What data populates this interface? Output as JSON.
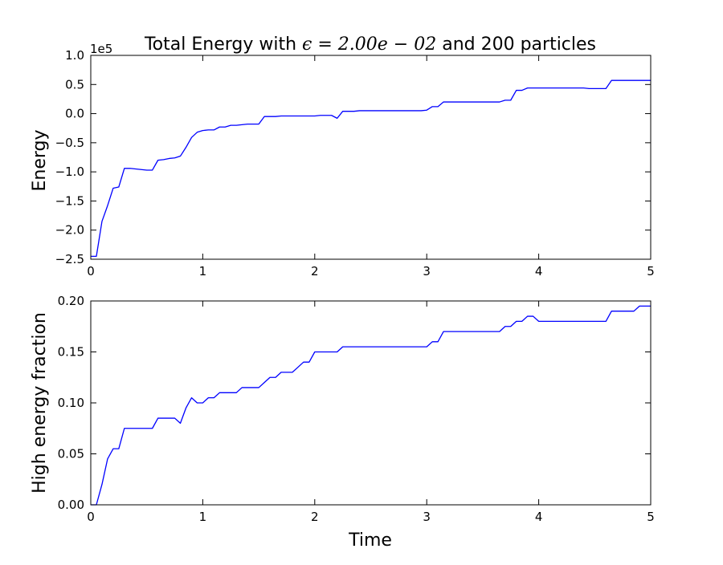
{
  "chart_data": [
    {
      "type": "line",
      "title_prefix": "Total Energy with ",
      "title_math": "ϵ = 2.00e − 02",
      "title_suffix": " and 200 particles",
      "xlabel": "",
      "ylabel": "Energy",
      "offset_text": "1e5",
      "xlim": [
        0,
        5
      ],
      "ylim": [
        -2.5,
        1.0
      ],
      "xticks": [
        0,
        1,
        2,
        3,
        4,
        5
      ],
      "xtick_labels": [
        "0",
        "1",
        "2",
        "3",
        "4",
        "5"
      ],
      "yticks": [
        -2.5,
        -2.0,
        -1.5,
        -1.0,
        -0.5,
        0.0,
        0.5,
        1.0
      ],
      "ytick_labels": [
        "−2.5",
        "−2.0",
        "−1.5",
        "−1.0",
        "−0.5",
        "0.0",
        "0.5",
        "1.0"
      ],
      "grid": false,
      "line_color": "#0000ff",
      "series": [
        {
          "x": [
            0,
            0.05,
            0.1,
            0.15,
            0.2,
            0.25,
            0.3,
            0.35,
            0.4,
            0.45,
            0.5,
            0.55,
            0.6,
            0.65,
            0.7,
            0.75,
            0.8,
            0.85,
            0.9,
            0.95,
            1.0,
            1.05,
            1.1,
            1.15,
            1.2,
            1.25,
            1.3,
            1.35,
            1.4,
            1.45,
            1.5,
            1.55,
            1.6,
            1.65,
            1.7,
            1.75,
            1.8,
            1.85,
            1.9,
            1.95,
            2.0,
            2.05,
            2.1,
            2.15,
            2.2,
            2.25,
            2.3,
            2.35,
            2.4,
            2.45,
            2.5,
            2.55,
            2.6,
            2.65,
            2.7,
            2.75,
            2.8,
            2.85,
            2.9,
            2.95,
            3.0,
            3.05,
            3.1,
            3.15,
            3.2,
            3.25,
            3.3,
            3.35,
            3.4,
            3.45,
            3.5,
            3.55,
            3.6,
            3.65,
            3.7,
            3.75,
            3.8,
            3.85,
            3.9,
            3.95,
            4.0,
            4.05,
            4.1,
            4.15,
            4.2,
            4.25,
            4.3,
            4.35,
            4.4,
            4.45,
            4.5,
            4.55,
            4.6,
            4.65,
            4.7,
            4.75,
            4.8,
            4.85,
            4.9,
            4.95,
            5.0
          ],
          "values": [
            -2.45,
            -2.45,
            -1.85,
            -1.58,
            -1.28,
            -1.26,
            -0.94,
            -0.94,
            -0.95,
            -0.96,
            -0.97,
            -0.97,
            -0.8,
            -0.79,
            -0.77,
            -0.76,
            -0.73,
            -0.58,
            -0.41,
            -0.32,
            -0.29,
            -0.28,
            -0.28,
            -0.23,
            -0.23,
            -0.2,
            -0.2,
            -0.19,
            -0.18,
            -0.18,
            -0.18,
            -0.05,
            -0.05,
            -0.05,
            -0.04,
            -0.04,
            -0.04,
            -0.04,
            -0.04,
            -0.04,
            -0.04,
            -0.03,
            -0.03,
            -0.03,
            -0.08,
            0.04,
            0.04,
            0.04,
            0.05,
            0.05,
            0.05,
            0.05,
            0.05,
            0.05,
            0.05,
            0.05,
            0.05,
            0.05,
            0.05,
            0.05,
            0.06,
            0.12,
            0.12,
            0.2,
            0.2,
            0.2,
            0.2,
            0.2,
            0.2,
            0.2,
            0.2,
            0.2,
            0.2,
            0.2,
            0.23,
            0.23,
            0.4,
            0.4,
            0.44,
            0.44,
            0.44,
            0.44,
            0.44,
            0.44,
            0.44,
            0.44,
            0.44,
            0.44,
            0.44,
            0.43,
            0.43,
            0.43,
            0.43,
            0.57,
            0.57,
            0.57,
            0.57,
            0.57,
            0.57,
            0.57,
            0.57
          ]
        }
      ]
    },
    {
      "type": "line",
      "title": "",
      "xlabel": "Time",
      "ylabel": "High energy fraction",
      "xlim": [
        0,
        5
      ],
      "ylim": [
        0.0,
        0.2
      ],
      "xticks": [
        0,
        1,
        2,
        3,
        4,
        5
      ],
      "xtick_labels": [
        "0",
        "1",
        "2",
        "3",
        "4",
        "5"
      ],
      "yticks": [
        0.0,
        0.05,
        0.1,
        0.15,
        0.2
      ],
      "ytick_labels": [
        "0.00",
        "0.05",
        "0.10",
        "0.15",
        "0.20"
      ],
      "grid": false,
      "line_color": "#0000ff",
      "series": [
        {
          "x": [
            0,
            0.05,
            0.1,
            0.15,
            0.2,
            0.25,
            0.3,
            0.35,
            0.4,
            0.45,
            0.5,
            0.55,
            0.6,
            0.65,
            0.7,
            0.75,
            0.8,
            0.85,
            0.9,
            0.95,
            1.0,
            1.05,
            1.1,
            1.15,
            1.2,
            1.25,
            1.3,
            1.35,
            1.4,
            1.45,
            1.5,
            1.55,
            1.6,
            1.65,
            1.7,
            1.75,
            1.8,
            1.85,
            1.9,
            1.95,
            2.0,
            2.05,
            2.1,
            2.15,
            2.2,
            2.25,
            2.3,
            2.35,
            2.4,
            2.45,
            2.5,
            2.55,
            2.6,
            2.65,
            2.7,
            2.75,
            2.8,
            2.85,
            2.9,
            2.95,
            3.0,
            3.05,
            3.1,
            3.15,
            3.2,
            3.25,
            3.3,
            3.35,
            3.4,
            3.45,
            3.5,
            3.55,
            3.6,
            3.65,
            3.7,
            3.75,
            3.8,
            3.85,
            3.9,
            3.95,
            4.0,
            4.05,
            4.1,
            4.15,
            4.2,
            4.25,
            4.3,
            4.35,
            4.4,
            4.45,
            4.5,
            4.55,
            4.6,
            4.65,
            4.7,
            4.75,
            4.8,
            4.85,
            4.9,
            4.95,
            5.0
          ],
          "values": [
            0.0,
            0.0,
            0.02,
            0.045,
            0.055,
            0.055,
            0.075,
            0.075,
            0.075,
            0.075,
            0.075,
            0.075,
            0.085,
            0.085,
            0.085,
            0.085,
            0.08,
            0.095,
            0.105,
            0.1,
            0.1,
            0.105,
            0.105,
            0.11,
            0.11,
            0.11,
            0.11,
            0.115,
            0.115,
            0.115,
            0.115,
            0.12,
            0.125,
            0.125,
            0.13,
            0.13,
            0.13,
            0.135,
            0.14,
            0.14,
            0.15,
            0.15,
            0.15,
            0.15,
            0.15,
            0.155,
            0.155,
            0.155,
            0.155,
            0.155,
            0.155,
            0.155,
            0.155,
            0.155,
            0.155,
            0.155,
            0.155,
            0.155,
            0.155,
            0.155,
            0.155,
            0.16,
            0.16,
            0.17,
            0.17,
            0.17,
            0.17,
            0.17,
            0.17,
            0.17,
            0.17,
            0.17,
            0.17,
            0.17,
            0.175,
            0.175,
            0.18,
            0.18,
            0.185,
            0.185,
            0.18,
            0.18,
            0.18,
            0.18,
            0.18,
            0.18,
            0.18,
            0.18,
            0.18,
            0.18,
            0.18,
            0.18,
            0.18,
            0.19,
            0.19,
            0.19,
            0.19,
            0.19,
            0.195,
            0.195,
            0.195
          ]
        }
      ]
    }
  ]
}
